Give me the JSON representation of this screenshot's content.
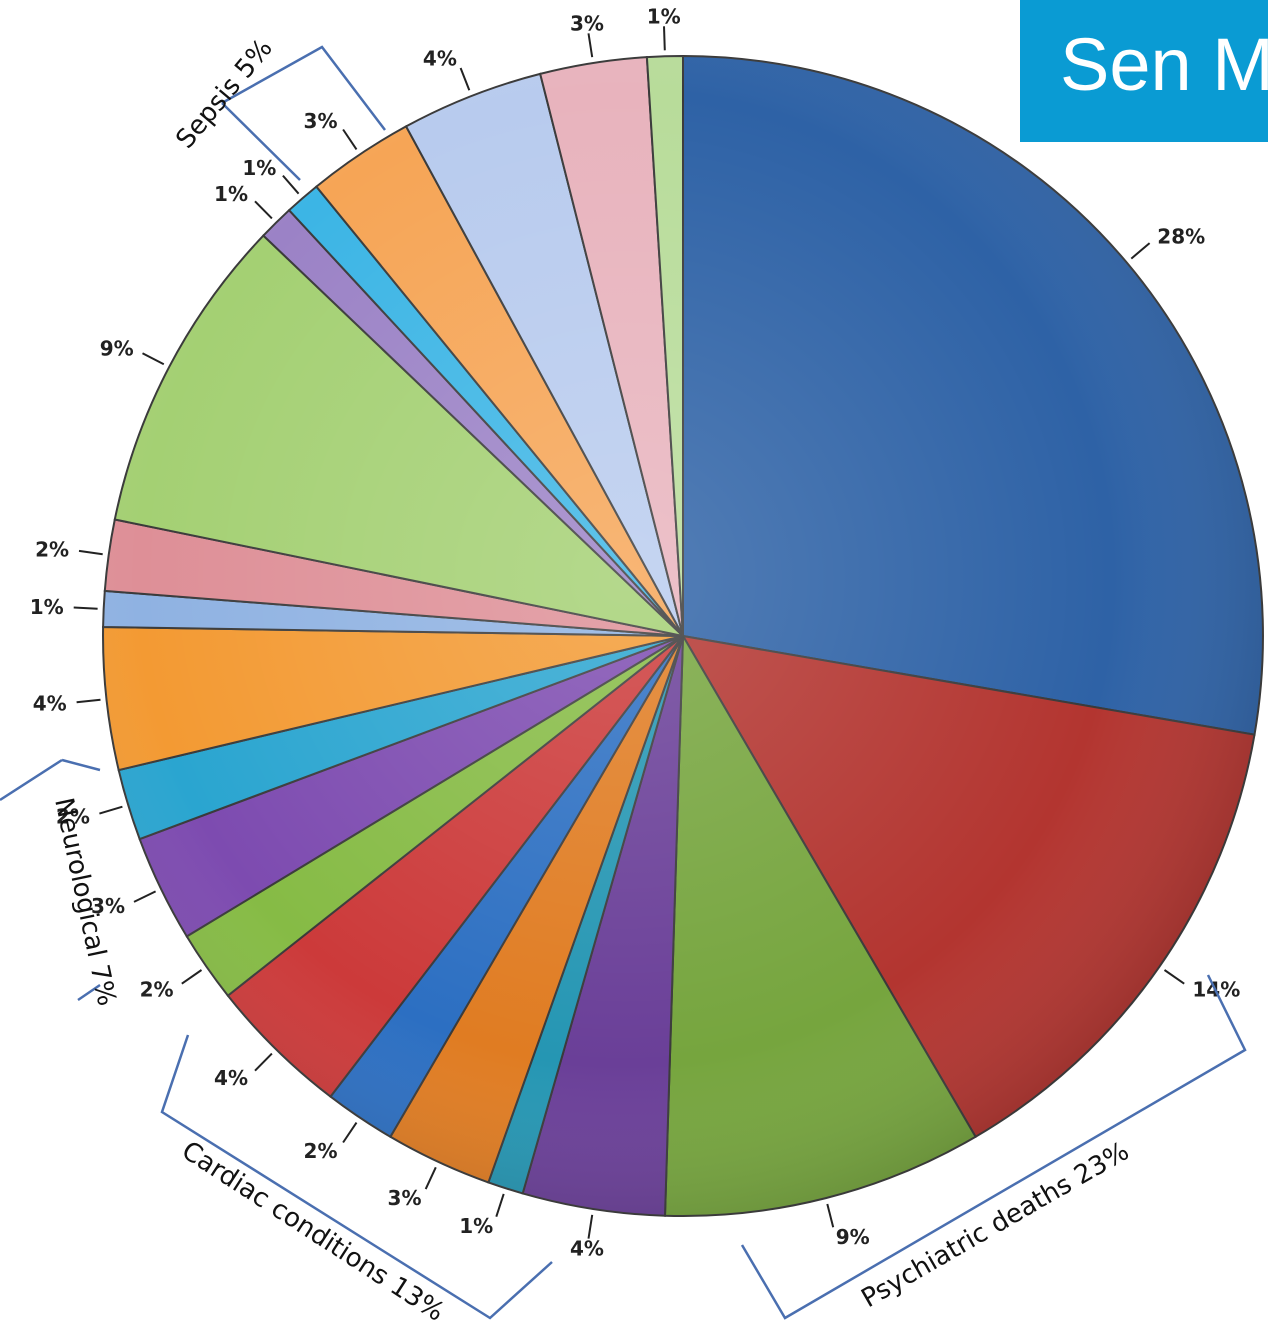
{
  "title": "Sen M",
  "chart_data": {
    "type": "pie",
    "slices": [
      {
        "label": "28%",
        "value": 28,
        "color": "#2e62a6"
      },
      {
        "label": "14%",
        "value": 14,
        "color": "#b33530"
      },
      {
        "label": "9%",
        "value": 9,
        "color": "#76a53e"
      },
      {
        "label": "4%",
        "value": 4,
        "color": "#6a3f98"
      },
      {
        "label": "1%",
        "value": 1,
        "color": "#2596b3"
      },
      {
        "label": "3%",
        "value": 3,
        "color": "#e07c22"
      },
      {
        "label": "2%",
        "value": 2,
        "color": "#2c6fc2"
      },
      {
        "label": "4%",
        "value": 4,
        "color": "#cc3a3a"
      },
      {
        "label": "2%",
        "value": 2,
        "color": "#86bb45"
      },
      {
        "label": "3%",
        "value": 3,
        "color": "#7d4bb0"
      },
      {
        "label": "2%",
        "value": 2,
        "color": "#2aa5d0"
      },
      {
        "label": "4%",
        "value": 4,
        "color": "#f39a33"
      },
      {
        "label": "1%",
        "value": 1,
        "color": "#8fb2e2"
      },
      {
        "label": "2%",
        "value": 2,
        "color": "#de8f97"
      },
      {
        "label": "9%",
        "value": 9,
        "color": "#a4d073"
      },
      {
        "label": "1%",
        "value": 1,
        "color": "#9b82c6"
      },
      {
        "label": "1%",
        "value": 1,
        "color": "#3cb5e5"
      },
      {
        "label": "3%",
        "value": 3,
        "color": "#f6a556"
      },
      {
        "label": "4%",
        "value": 4,
        "color": "#b8cbee"
      },
      {
        "label": "3%",
        "value": 3,
        "color": "#e8b3bd"
      },
      {
        "label": "1%",
        "value": 1,
        "color": "#b8dc9a"
      }
    ],
    "groups": [
      {
        "label": "Psychiatric deaths 23%"
      },
      {
        "label": "Cardiac conditions 13%"
      },
      {
        "label": "Neurological 7%"
      },
      {
        "label": "Sepsis 5%"
      }
    ]
  }
}
